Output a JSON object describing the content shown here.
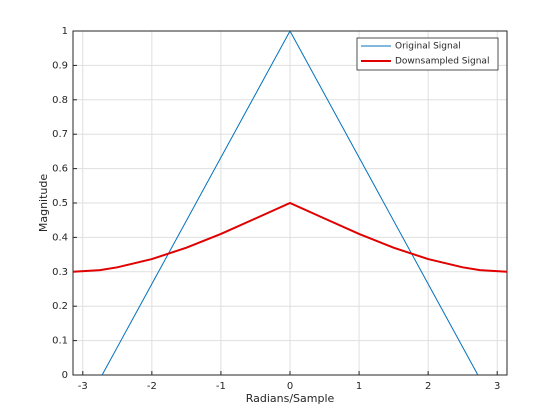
{
  "chart_data": {
    "type": "line",
    "xlabel": "Radians/Sample",
    "ylabel": "Magnitude",
    "xlim": [
      -3.1416,
      3.1416
    ],
    "xticks": [
      -3,
      -2,
      -1,
      0,
      1,
      2,
      3
    ],
    "ylim": [
      0,
      1
    ],
    "yticks": [
      0,
      0.1,
      0.2,
      0.3,
      0.4,
      0.5,
      0.6,
      0.7,
      0.8,
      0.9,
      1
    ],
    "grid": true,
    "legend": "northeast",
    "series": [
      {
        "name": "Original Signal",
        "color": "#0072bd",
        "width": 1,
        "x": [
          -2.72,
          0,
          2.72
        ],
        "values": [
          0,
          1,
          0
        ]
      },
      {
        "name": "Downsampled Signal",
        "color": "#e00000",
        "width": 2,
        "x": [
          -3.1416,
          -2.75,
          -2.5,
          -2,
          -1.5,
          -1,
          -0.5,
          0,
          0.5,
          1,
          1.5,
          2,
          2.5,
          2.75,
          3.1416
        ],
        "values": [
          0.3,
          0.305,
          0.313,
          0.337,
          0.37,
          0.41,
          0.455,
          0.5,
          0.455,
          0.41,
          0.37,
          0.337,
          0.313,
          0.305,
          0.3
        ]
      }
    ]
  }
}
